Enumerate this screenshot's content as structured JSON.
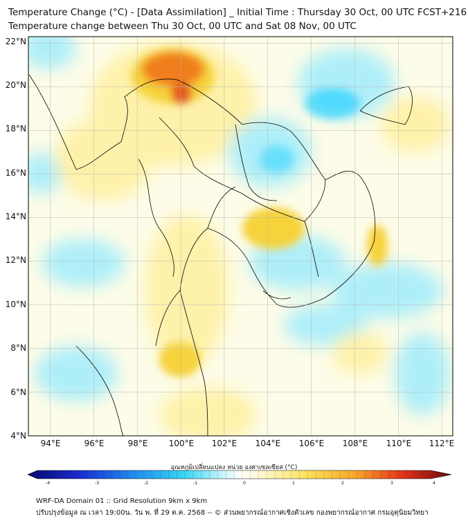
{
  "title": {
    "line1": "Temperature Change (°C) - [Data Assimilation] _ Initial Time : Thursday 30 Oct, 00 UTC FCST+216",
    "line2": "Temperature change between Thu 30 Oct, 00 UTC and Sat 08 Nov, 00 UTC"
  },
  "axes": {
    "lat_labels": [
      "22°N",
      "20°N",
      "18°N",
      "16°N",
      "14°N",
      "12°N",
      "10°N",
      "8°N",
      "6°N",
      "4°N"
    ],
    "lon_labels": [
      "94°E",
      "96°E",
      "98°E",
      "100°E",
      "102°E",
      "104°E",
      "106°E",
      "108°E",
      "110°E",
      "112°E"
    ],
    "lat_values": [
      22,
      20,
      18,
      16,
      14,
      12,
      10,
      8,
      6,
      4
    ],
    "lon_values": [
      94,
      96,
      98,
      100,
      102,
      104,
      106,
      108,
      110,
      112
    ],
    "lat_range": [
      4,
      22.3
    ],
    "lon_range": [
      93,
      112.5
    ]
  },
  "colorbar": {
    "label": "อุณหภูมิเปลี่ยนแปลง หน่วย องศาเซลเซียส (°C)",
    "ticks": [
      "-4",
      "-3",
      "-2",
      "-1",
      "0",
      "1",
      "2",
      "3",
      "4"
    ],
    "min": -4,
    "max": 4
  },
  "footer": {
    "line1": "WRF-DA Domain 01 :: Grid Resolution 9km x 9km",
    "line2": "ปรับปรุงข้อมูล ณ เวลา 19:00น. วัน พ. ที่ 29 ต.ค. 2568 -- © ส่วนพยากรณ์อากาศเชิงตัวเลข กองพยากรณ์อากาศ กรมอุตุนิยมวิทยา"
  },
  "colors": {
    "cold_strong": "#00c8ff",
    "cold_light": "#aaeefa",
    "neutral": "#fdfce8",
    "warm_light": "#fff1a6",
    "warm": "#f6d23a",
    "hot": "#f07e1e",
    "hottest": "#e2541a",
    "outline": "#000000"
  }
}
